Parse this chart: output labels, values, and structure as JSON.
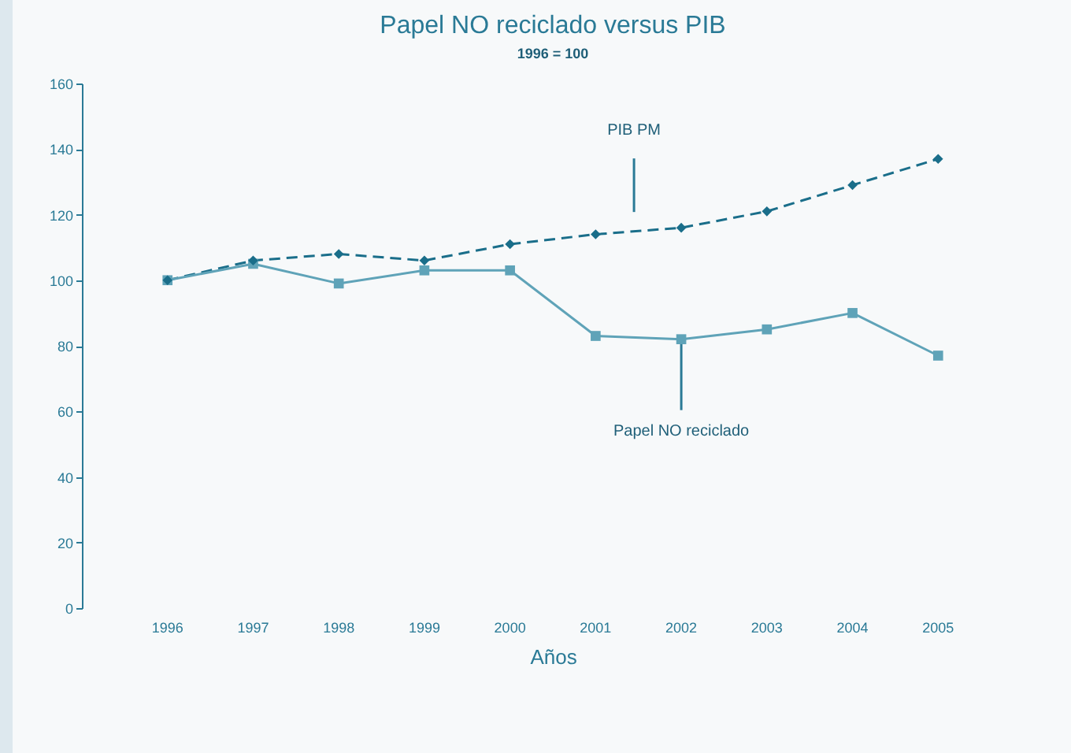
{
  "chart_data": {
    "type": "line",
    "title": "Papel NO reciclado versus PIB",
    "ylabel": "1996 = 100",
    "xlabel": "Años",
    "categories": [
      "1996",
      "1997",
      "1998",
      "1999",
      "2000",
      "2001",
      "2002",
      "2003",
      "2004",
      "2005"
    ],
    "series": [
      {
        "name": "PIB PM",
        "color": "#1a6e8a",
        "marker": "diamond",
        "line_style": "dashed",
        "values": [
          100,
          106,
          108,
          106,
          111,
          114,
          116,
          121,
          129,
          137
        ]
      },
      {
        "name": "Papel NO reciclado",
        "color": "#5fa3b8",
        "marker": "square",
        "line_style": "solid",
        "values": [
          100,
          105,
          99,
          103,
          103,
          83,
          82,
          85,
          90,
          77
        ]
      }
    ],
    "ylim": [
      0,
      160
    ],
    "yticks": [
      0,
      20,
      40,
      60,
      80,
      100,
      120,
      140,
      160
    ],
    "grid": false,
    "legend": false
  }
}
